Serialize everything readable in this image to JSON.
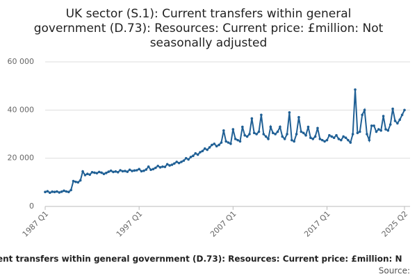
{
  "chart_data": {
    "type": "line",
    "title": [
      "UK sector (S.1): Current transfers within general",
      "government (D.73): Resources: Current price: £million: Not",
      "seasonally adjusted"
    ],
    "x_label": "ent transfers within general government (D.73): Resources: Current price: £million: N",
    "source": "Source:",
    "color": "#206095",
    "categories": [
      "1987 Q1",
      null,
      null,
      null,
      null,
      null,
      null,
      null,
      null,
      null,
      null,
      null,
      null,
      null,
      null,
      null,
      null,
      null,
      null,
      null,
      null,
      null,
      null,
      null,
      null,
      null,
      null,
      null,
      null,
      null,
      null,
      null,
      null,
      null,
      null,
      null,
      null,
      null,
      null,
      null,
      "1997 Q1",
      null,
      null,
      null,
      null,
      null,
      null,
      null,
      null,
      null,
      null,
      null,
      null,
      null,
      null,
      null,
      null,
      null,
      null,
      null,
      null,
      null,
      null,
      null,
      null,
      null,
      null,
      null,
      null,
      null,
      null,
      null,
      null,
      null,
      null,
      null,
      null,
      null,
      null,
      null,
      "2007 Q1",
      null,
      null,
      null,
      null,
      null,
      null,
      null,
      null,
      null,
      null,
      null,
      null,
      null,
      null,
      null,
      null,
      null,
      null,
      null,
      null,
      null,
      null,
      null,
      null,
      null,
      null,
      null,
      null,
      null,
      null,
      null,
      null,
      null,
      null,
      null,
      null,
      null,
      null,
      null,
      "2017 Q1",
      null,
      null,
      null,
      null,
      null,
      null,
      null,
      null,
      null,
      null,
      null,
      null,
      null,
      null,
      null,
      null,
      null,
      null,
      null,
      null,
      null,
      null,
      null,
      null,
      null,
      null,
      null,
      null,
      null,
      null,
      null,
      null,
      "2025 Q2"
    ],
    "values": [
      6000,
      6300,
      5700,
      6100,
      6000,
      6200,
      5800,
      6100,
      6500,
      6200,
      6000,
      6800,
      10500,
      10200,
      10000,
      10800,
      14500,
      13000,
      13500,
      13200,
      14200,
      14000,
      13800,
      14300,
      14000,
      13500,
      13900,
      14400,
      14800,
      14300,
      14500,
      14200,
      15000,
      14600,
      14700,
      14400,
      15200,
      14700,
      14900,
      15000,
      15500,
      14600,
      14800,
      15300,
      16500,
      15200,
      15500,
      16000,
      16800,
      16200,
      16500,
      16400,
      17500,
      17000,
      17300,
      17800,
      18500,
      18000,
      18500,
      19000,
      20000,
      19500,
      20500,
      21000,
      22000,
      21500,
      22500,
      23000,
      24000,
      23500,
      24500,
      25500,
      26000,
      25000,
      25500,
      26500,
      31500,
      27000,
      26500,
      26000,
      32000,
      28000,
      27500,
      27000,
      33000,
      29500,
      29000,
      30000,
      36500,
      30500,
      30000,
      31000,
      38000,
      30000,
      29000,
      28000,
      33000,
      30500,
      30000,
      31000,
      33000,
      29000,
      28000,
      30000,
      39000,
      27500,
      27000,
      30000,
      37000,
      31000,
      30500,
      29500,
      33000,
      28500,
      28000,
      29000,
      32500,
      28000,
      27500,
      27000,
      27500,
      29500,
      29000,
      28500,
      29500,
      28000,
      27500,
      29000,
      28500,
      27500,
      26500,
      30000,
      48500,
      30500,
      31000,
      38000,
      40000,
      30000,
      27500,
      33500,
      33500,
      31000,
      32000,
      31500,
      37500,
      32000,
      31500,
      34000,
      40500,
      35500,
      34500,
      36000,
      38000,
      40000
    ],
    "ylim": [
      0,
      60000
    ],
    "yticks": [
      0,
      {
        "value": 20000,
        "label": "20 000"
      },
      {
        "value": 40000,
        "label": "40 000"
      },
      {
        "value": 60000,
        "label": "60 000"
      }
    ],
    "grid": true
  }
}
